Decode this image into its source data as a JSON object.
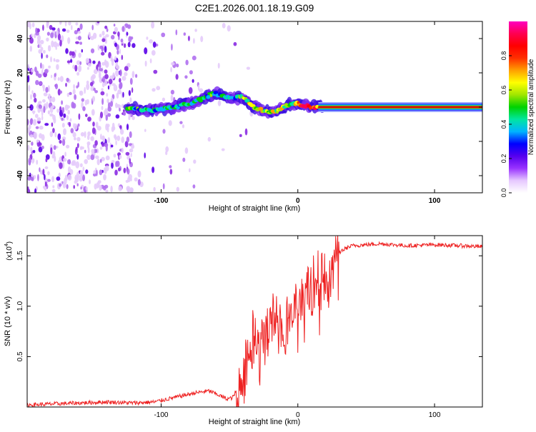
{
  "title": "C2E1.2026.001.18.19.G09",
  "chart_data": [
    {
      "type": "heatmap",
      "title": "C2E1.2026.001.18.19.G09",
      "xlabel": "Height of straight line (km)",
      "ylabel": "Frequency (Hz)",
      "xlim": [
        -198,
        135
      ],
      "ylim": [
        -50,
        50
      ],
      "xticks": [
        {
          "v": -100,
          "label": "-100"
        },
        {
          "v": 0,
          "label": "0"
        },
        {
          "v": 100,
          "label": "100"
        }
      ],
      "yticks": [
        {
          "v": -40,
          "label": "-40"
        },
        {
          "v": -20,
          "label": "-20"
        },
        {
          "v": 0,
          "label": "0"
        },
        {
          "v": 20,
          "label": "20"
        },
        {
          "v": 40,
          "label": "40"
        }
      ],
      "ridge": {
        "x": [
          -118,
          -110,
          -100,
          -90,
          -80,
          -70,
          -62,
          -55,
          -48,
          -42,
          -38,
          -34,
          -30,
          -25,
          -20,
          -15,
          -10,
          -5,
          0,
          5,
          10,
          15,
          20,
          40,
          80,
          135
        ],
        "y": [
          -1,
          -2,
          -1,
          0,
          2,
          5,
          8,
          7,
          5,
          6,
          4,
          1,
          -1,
          -2,
          -3,
          -2,
          0,
          2,
          2,
          1,
          0,
          0,
          0,
          0,
          0,
          0
        ]
      },
      "colorbar": {
        "label": "Normalized spectral amplitude",
        "range": [
          0,
          1
        ],
        "ticks": [
          {
            "v": 0.0,
            "label": "0.0"
          },
          {
            "v": 0.2,
            "label": "0.2"
          },
          {
            "v": 0.4,
            "label": "0.4"
          },
          {
            "v": 0.6,
            "label": "0.6"
          },
          {
            "v": 0.8,
            "label": "0.8"
          }
        ],
        "colors": [
          "#ffffff",
          "#e6c8ff",
          "#9933ff",
          "#5500ee",
          "#0000ff",
          "#00b4ff",
          "#00e6a0",
          "#00d200",
          "#a0e600",
          "#ffff00",
          "#ffa000",
          "#ff3000",
          "#ff0000",
          "#ff0050",
          "#ff00c0"
        ]
      }
    },
    {
      "type": "line",
      "xlabel": "Height of straight line (km)",
      "ylabel": "SNR (10 * v/v)",
      "yscale_label": "(x10",
      "yscale_exp": "4",
      "yscale_close": ")",
      "xlim": [
        -198,
        135
      ],
      "ylim": [
        0,
        1.7
      ],
      "xticks": [
        {
          "v": -100,
          "label": "-100"
        },
        {
          "v": 0,
          "label": "0"
        },
        {
          "v": 100,
          "label": "100"
        }
      ],
      "yticks": [
        {
          "v": 0.5,
          "label": "0.5"
        },
        {
          "v": 1.0,
          "label": "1.0"
        },
        {
          "v": 1.5,
          "label": "1.5"
        }
      ],
      "color": "#ee2222",
      "series": [
        {
          "name": "SNR",
          "x": [
            -198,
            -180,
            -160,
            -140,
            -120,
            -105,
            -95,
            -85,
            -75,
            -65,
            -58,
            -52,
            -48,
            -44,
            -40,
            -36,
            -32,
            -28,
            -24,
            -20,
            -16,
            -12,
            -8,
            -4,
            0,
            4,
            8,
            12,
            16,
            20,
            24,
            28,
            32,
            36,
            40,
            50,
            60,
            70,
            80,
            100,
            120,
            135
          ],
          "y": [
            0.02,
            0.03,
            0.04,
            0.05,
            0.04,
            0.05,
            0.08,
            0.11,
            0.14,
            0.16,
            0.12,
            0.08,
            0.09,
            0.18,
            0.35,
            0.55,
            0.75,
            0.6,
            0.7,
            0.9,
            0.85,
            0.8,
            0.88,
            0.95,
            1.02,
            1.1,
            1.15,
            1.2,
            1.25,
            1.33,
            1.42,
            1.5,
            1.55,
            1.58,
            1.6,
            1.61,
            1.62,
            1.61,
            1.6,
            1.61,
            1.6,
            1.59
          ]
        }
      ]
    }
  ]
}
